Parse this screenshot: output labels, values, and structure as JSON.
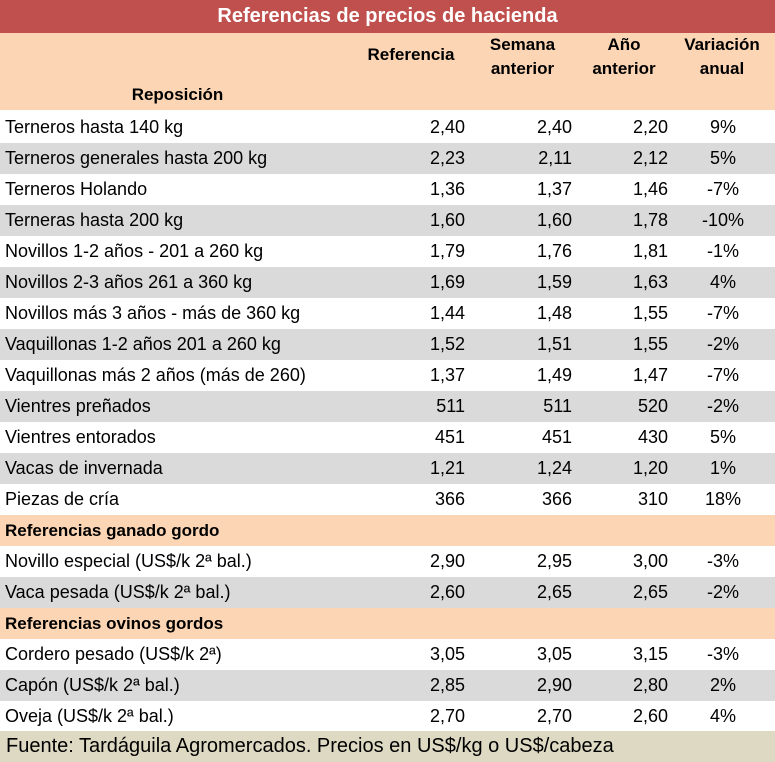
{
  "title": "Referencias de precios de hacienda",
  "headers": {
    "referencia": "Referencia",
    "semana_1": "Semana",
    "semana_2": "anterior",
    "anio_1": "Año",
    "anio_2": "anterior",
    "variacion_1": "Variación",
    "variacion_2": "anual",
    "reposicion": "Reposición"
  },
  "rows": [
    {
      "name": "Terneros hasta 140 kg",
      "ref": "2,40",
      "semana": "2,40",
      "anio": "2,20",
      "var": "9%"
    },
    {
      "name": "Terneros generales hasta 200 kg",
      "ref": "2,23",
      "semana": "2,11",
      "anio": "2,12",
      "var": "5%"
    },
    {
      "name": "Terneros Holando",
      "ref": "1,36",
      "semana": "1,37",
      "anio": "1,46",
      "var": "-7%"
    },
    {
      "name": "Terneras hasta 200 kg",
      "ref": "1,60",
      "semana": "1,60",
      "anio": "1,78",
      "var": "-10%"
    },
    {
      "name": "Novillos 1-2 años - 201 a 260 kg",
      "ref": "1,79",
      "semana": "1,76",
      "anio": "1,81",
      "var": "-1%"
    },
    {
      "name": "Novillos 2-3 años 261 a 360 kg",
      "ref": "1,69",
      "semana": "1,59",
      "anio": "1,63",
      "var": "4%"
    },
    {
      "name": "Novillos más 3 años - más de 360 kg",
      "ref": "1,44",
      "semana": "1,48",
      "anio": "1,55",
      "var": "-7%"
    },
    {
      "name": "Vaquillonas 1-2 años 201 a 260 kg",
      "ref": "1,52",
      "semana": "1,51",
      "anio": "1,55",
      "var": "-2%"
    },
    {
      "name": "Vaquillonas más 2 años (más de 260)",
      "ref": "1,37",
      "semana": "1,49",
      "anio": "1,47",
      "var": "-7%"
    },
    {
      "name": "Vientres preñados",
      "ref": "511",
      "semana": "511",
      "anio": "520",
      "var": "-2%"
    },
    {
      "name": "Vientres entorados",
      "ref": "451",
      "semana": "451",
      "anio": "430",
      "var": "5%"
    },
    {
      "name": "Vacas de invernada",
      "ref": "1,21",
      "semana": "1,24",
      "anio": "1,20",
      "var": "1%"
    },
    {
      "name": "Piezas de cría",
      "ref": "366",
      "semana": "366",
      "anio": "310",
      "var": "18%"
    },
    {
      "section": "Referencias ganado gordo"
    },
    {
      "name": "Novillo especial (US$/k 2ª bal.)",
      "ref": "2,90",
      "semana": "2,95",
      "anio": "3,00",
      "var": "-3%"
    },
    {
      "name": "Vaca pesada (US$/k 2ª bal.)",
      "ref": "2,60",
      "semana": "2,65",
      "anio": "2,65",
      "var": "-2%"
    },
    {
      "section": "Referencias ovinos gordos"
    },
    {
      "name": "Cordero pesado (US$/k 2ª)",
      "ref": "3,05",
      "semana": "3,05",
      "anio": "3,15",
      "var": "-3%"
    },
    {
      "name": "Capón (US$/k 2ª bal.)",
      "ref": "2,85",
      "semana": "2,90",
      "anio": "2,80",
      "var": "2%"
    },
    {
      "name": "Oveja (US$/k 2ª bal.)",
      "ref": "2,70",
      "semana": "2,70",
      "anio": "2,60",
      "var": "4%"
    }
  ],
  "footer": "Fuente: Tardáguila Agromercados. Precios en US$/kg o US$/cabeza",
  "colors": {
    "title_bg": "#c0504d",
    "header_bg": "#fcd5b4",
    "row_alt_bg": "#dadada",
    "footer_bg": "#ddd9c3"
  }
}
